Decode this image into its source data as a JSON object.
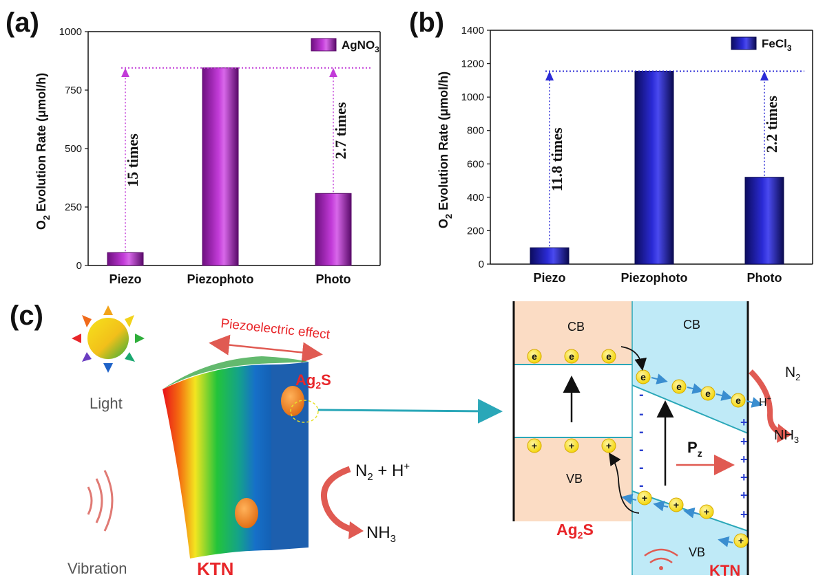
{
  "chart_data": [
    {
      "panel": "(a)",
      "type": "bar",
      "categories": [
        "Piezo",
        "Piezophoto",
        "Photo"
      ],
      "values": [
        55,
        845,
        308
      ],
      "ylabel_main": "O",
      "ylabel_sub": "2",
      "ylabel_rest": " Evolution Rate (μmol/h)",
      "ylim": [
        0,
        1000
      ],
      "yticks": [
        "0",
        "250",
        "500",
        "750",
        "1000"
      ],
      "legend": {
        "main": "AgNO",
        "sub": "3",
        "placement": "top-right"
      },
      "annotations": [
        "15 times",
        "2.7 times"
      ],
      "reference_level": 845,
      "color": "#c23bd8",
      "color_dark": "#5a0a6a"
    },
    {
      "panel": "(b)",
      "type": "bar",
      "categories": [
        "Piezo",
        "Piezophoto",
        "Photo"
      ],
      "values": [
        98,
        1155,
        520
      ],
      "ylabel_main": "O",
      "ylabel_sub": "2",
      "ylabel_rest": " Evolution Rate (μmol/h)",
      "ylim": [
        0,
        1400
      ],
      "yticks": [
        "0",
        "200",
        "400",
        "600",
        "800",
        "1000",
        "1200",
        "1400"
      ],
      "legend": {
        "main": "FeCl",
        "sub": "3",
        "placement": "top-right"
      },
      "annotations": [
        "11.8 times",
        "2.2 times"
      ],
      "reference_level": 1155,
      "color": "#2b2bd6",
      "color_dark": "#0a0a50"
    }
  ],
  "diagram": {
    "panel": "(c)",
    "light_label": "Light",
    "vibration_label": "Vibration",
    "piezo_effect_label": "Piezoelectric effect",
    "ktn_label": "KTN",
    "ag2s_main": "Ag",
    "ag2s_sub": "2",
    "ag2s_rest": "S",
    "n2_main": "N",
    "n2_sub": "2",
    "n2_rest": " + H",
    "n2_sup": "+",
    "nh3_main": "NH",
    "nh3_sub": "3",
    "cb_label": "CB",
    "vb_label": "VB",
    "electron": "e",
    "hole": "+",
    "minus": "-",
    "plus": "+",
    "pz_main": "P",
    "pz_sub": "z",
    "right_n2_main": "N",
    "right_n2_sub": "2",
    "right_h": "H",
    "right_h_sup": "+",
    "right_nh3_main": "NH",
    "right_nh3_sub": "3"
  },
  "colors": {
    "red_text": "#e8262a",
    "ag2s_fill": "#fbdcc4",
    "ktn_fill": "#bfeaf7",
    "band_line": "#2aa7b8",
    "arrow_red": "#e05a52"
  }
}
